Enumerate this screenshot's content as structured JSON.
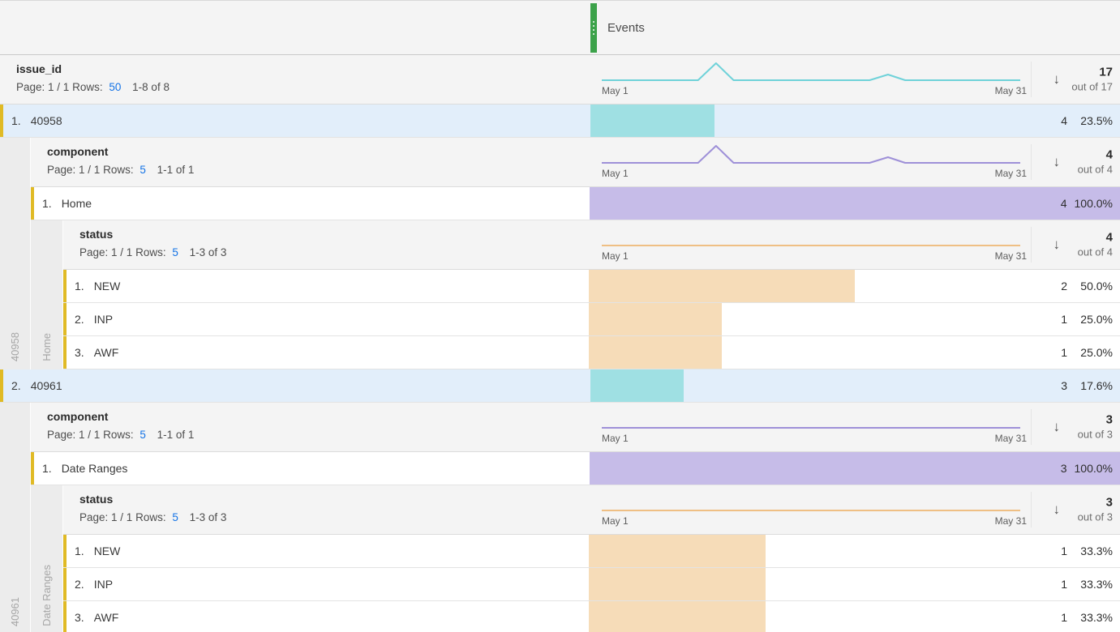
{
  "labels": {
    "page": "Page:",
    "rows": "Rows:",
    "spark_start": "May 1",
    "spark_end": "May 31"
  },
  "metric_header": {
    "label": "Events"
  },
  "colors": {
    "metric_handle_green": "#3ca24a",
    "row_accent_yellow": "#e0ba25",
    "selected_row_blue": "#e2eefa",
    "bar_teal": "#9fe0e3",
    "bar_purple": "#c6bce8",
    "bar_peach": "#f6dcb8",
    "spark_teal": "#6fd2d9",
    "spark_purple": "#9e90d8",
    "spark_orange": "#efbf84",
    "link_blue": "#1473e6"
  },
  "sparklines": {
    "shapes": {
      "peak": [
        [
          0,
          25
        ],
        [
          23,
          25
        ],
        [
          27.3,
          4
        ],
        [
          31.5,
          25
        ],
        [
          64,
          25
        ],
        [
          68.4,
          18
        ],
        [
          72.5,
          25
        ],
        [
          100,
          25
        ]
      ],
      "flat": [
        [
          0,
          25
        ],
        [
          100,
          25
        ]
      ]
    }
  },
  "table": {
    "dimension": "issue_id",
    "page_value": "1 / 1",
    "rows_value": "50",
    "range": "1-8 of 8",
    "total": "17",
    "total_out_of": "out of 17",
    "spark": {
      "shape": "peak",
      "color": "#6fd2d9"
    },
    "rows": [
      {
        "num": "1.",
        "label": "40958",
        "value": "4",
        "pct": "23.5%",
        "bar_pct": 23.5,
        "child": {
          "dimension": "component",
          "page_value": "1 / 1",
          "rows_value": "5",
          "range": "1-1 of 1",
          "total": "4",
          "total_out_of": "out of 4",
          "spark": {
            "shape": "peak",
            "color": "#9e90d8"
          },
          "rows": [
            {
              "num": "1.",
              "label": "Home",
              "value": "4",
              "pct": "100.0%",
              "bar_pct": 100,
              "child": {
                "dimension": "status",
                "page_value": "1 / 1",
                "rows_value": "5",
                "range": "1-3 of 3",
                "total": "4",
                "total_out_of": "out of 4",
                "spark": {
                  "shape": "flat",
                  "color": "#efbf84"
                },
                "rows": [
                  {
                    "num": "1.",
                    "label": "NEW",
                    "value": "2",
                    "pct": "50.0%",
                    "bar_pct": 50
                  },
                  {
                    "num": "2.",
                    "label": "INP",
                    "value": "1",
                    "pct": "25.0%",
                    "bar_pct": 25
                  },
                  {
                    "num": "3.",
                    "label": "AWF",
                    "value": "1",
                    "pct": "25.0%",
                    "bar_pct": 25
                  }
                ]
              }
            }
          ]
        }
      },
      {
        "num": "2.",
        "label": "40961",
        "value": "3",
        "pct": "17.6%",
        "bar_pct": 17.6,
        "child": {
          "dimension": "component",
          "page_value": "1 / 1",
          "rows_value": "5",
          "range": "1-1 of 1",
          "total": "3",
          "total_out_of": "out of 3",
          "spark": {
            "shape": "flat",
            "color": "#9e90d8"
          },
          "rows": [
            {
              "num": "1.",
              "label": "Date Ranges",
              "value": "3",
              "pct": "100.0%",
              "bar_pct": 100,
              "child": {
                "dimension": "status",
                "page_value": "1 / 1",
                "rows_value": "5",
                "range": "1-3 of 3",
                "total": "3",
                "total_out_of": "out of 3",
                "spark": {
                  "shape": "flat",
                  "color": "#efbf84"
                },
                "rows": [
                  {
                    "num": "1.",
                    "label": "NEW",
                    "value": "1",
                    "pct": "33.3%",
                    "bar_pct": 33.3
                  },
                  {
                    "num": "2.",
                    "label": "INP",
                    "value": "1",
                    "pct": "33.3%",
                    "bar_pct": 33.3
                  },
                  {
                    "num": "3.",
                    "label": "AWF",
                    "value": "1",
                    "pct": "33.3%",
                    "bar_pct": 33.3
                  }
                ]
              }
            }
          ]
        }
      }
    ]
  },
  "chart_data": [
    {
      "type": "line",
      "title": "Events sparkline — issue_id total",
      "x_range": [
        "May 1",
        "May 31"
      ],
      "shape": "flat near zero with a tall spike ~27% across the month and a small bump ~68%",
      "total": 17
    },
    {
      "type": "line",
      "title": "Events sparkline — 40958 > component",
      "x_range": [
        "May 1",
        "May 31"
      ],
      "shape": "flat with tall spike ~27% and small bump ~68%",
      "total": 4
    },
    {
      "type": "line",
      "title": "Events sparkline — 40958 > Home > status",
      "x_range": [
        "May 1",
        "May 31"
      ],
      "shape": "flat line",
      "total": 4
    },
    {
      "type": "line",
      "title": "Events sparkline — 40961 > component",
      "x_range": [
        "May 1",
        "May 31"
      ],
      "shape": "flat line",
      "total": 3
    },
    {
      "type": "line",
      "title": "Events sparkline — 40961 > Date Ranges > status",
      "x_range": [
        "May 1",
        "May 31"
      ],
      "shape": "flat line",
      "total": 3
    },
    {
      "type": "bar",
      "title": "Events breakdown bars",
      "categories": [
        "40958",
        "40958>Home",
        "40958>NEW",
        "40958>INP",
        "40958>AWF",
        "40961",
        "40961>Date Ranges",
        "40961>NEW",
        "40961>INP",
        "40961>AWF"
      ],
      "values": [
        4,
        4,
        2,
        1,
        1,
        3,
        3,
        1,
        1,
        1
      ],
      "percents": [
        23.5,
        100.0,
        50.0,
        25.0,
        25.0,
        17.6,
        100.0,
        33.3,
        33.3,
        33.3
      ]
    }
  ]
}
